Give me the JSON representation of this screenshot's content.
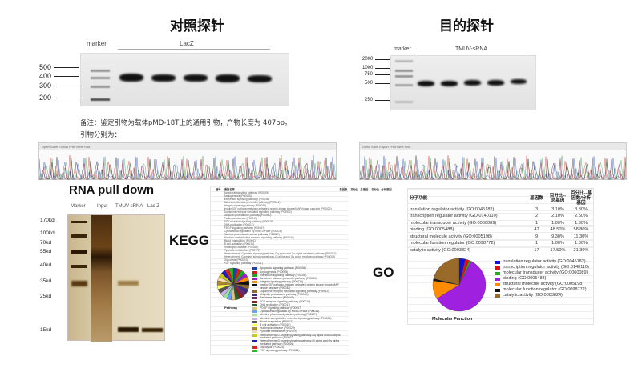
{
  "control_probe": {
    "title": "对照探针",
    "marker_label": "marker",
    "lane_group_label": "LacZ",
    "ladder": [
      "500",
      "400",
      "300",
      "200"
    ],
    "note_line1": "备注：鉴定引物为载体pMD-18T上的通用引物，产物长度为 407bp。",
    "note_line2": "引物分别为："
  },
  "target_probe": {
    "title": "目的探针",
    "marker_label": "marker",
    "lane_group_label": "TMUV-sRNA",
    "ladder": [
      "2000",
      "1000",
      "750",
      "500",
      "250"
    ]
  },
  "chromatogram_toolbar": [
    "Open",
    "Save",
    "Export",
    "Print",
    "Next",
    "Find"
  ],
  "pull_down": {
    "title": "RNA pull down",
    "lanes": [
      "Marker",
      "Input",
      "TMUV-sRNA",
      "Lac Z"
    ],
    "sizes": [
      "170kd",
      "100kd",
      "70kd",
      "55kd",
      "40kd",
      "35kd",
      "25kd",
      "15kd"
    ]
  },
  "kegg": {
    "label": "KEGG",
    "headers": [
      "编号",
      "通路名称",
      "基因数",
      "百分比--总基因",
      "百分比--分析基因"
    ],
    "pie_title": "Pathway",
    "pathways": [
      "Apoptosis signaling pathway (P00006)",
      "Angiogenesis (P00005)",
      "Interleukin signaling pathway (P00036)",
      "Alzheimer disease-presenilin pathway (P00004)",
      "Integrin signaling pathway (P00034)",
      "Insulin/IGF pathway-mitogen activated protein kinase kinase/MAP kinase cascade (P00032)",
      "Dopamine receptor mediated signaling pathway (P05912)",
      "Ubiquitin proteasome pathway (P00060)",
      "Parkinson disease (P00049)",
      "EGF receptor signaling pathway (P00018)",
      "DNA replication (P00017)",
      "PDGF signaling pathway (P00047)",
      "Cytoskeletal regulation by Rho GTPase (P00016)",
      "Nicotine pharmacodynamics pathway (P06587)",
      "Nicotinic acetylcholine receptor signaling pathway (P00044)",
      "Blood coagulation (P00011)",
      "B cell activation (P00010)",
      "Huntington disease (P00029)",
      "Pyruvate metabolism (P02772)",
      "Heterotrimeric G-protein signaling pathway-Gq alpha and Go alpha mediated pathway (P00027)",
      "Heterotrimeric G-protein signaling pathway-Gi alpha and Gs alpha mediated pathway (P00026)",
      "Glycolysis (P00024)",
      "FGF signaling pathway (P00021)"
    ],
    "colors": [
      "#1f3fbf",
      "#d21f1f",
      "#1fa81f",
      "#9b1fd2",
      "#ff8c00",
      "#111111",
      "#8b6a2b",
      "#3a2b8b",
      "#6b2b6b",
      "#8b1f1f",
      "#2b5b2b",
      "#d9c27a",
      "#66a3ff",
      "#99e699",
      "#c7b3e6",
      "#555555",
      "#ffff55",
      "#b3862b",
      "#f0d9b3",
      "#c8c81f",
      "#1f1fbf",
      "#e01f1f",
      "#22bb22"
    ]
  },
  "go": {
    "label": "GO",
    "headers": [
      "分子功能",
      "基因数",
      "百分比--总基因",
      "百分比--基因数/分析基因"
    ],
    "rows": [
      [
        "translation regulator activity (GO:0045182)",
        "3",
        "3.10%",
        "3.80%"
      ],
      [
        "transcription regulator activity (GO:0140110)",
        "2",
        "2.10%",
        "2.50%"
      ],
      [
        "molecular transducer activity (GO:0060089)",
        "1",
        "1.00%",
        "1.30%"
      ],
      [
        "binding (GO:0005488)",
        "47",
        "48.50%",
        "58.80%"
      ],
      [
        "structural molecule activity (GO:0005198)",
        "9",
        "9.30%",
        "11.30%"
      ],
      [
        "molecular function regulator (GO:0098772)",
        "1",
        "1.00%",
        "1.30%"
      ],
      [
        "catalytic activity (GO:0003824)",
        "17",
        "17.50%",
        "21.30%"
      ]
    ],
    "colors": [
      "#1010e0",
      "#e01010",
      "#20b020",
      "#a020e0",
      "#ff8c00",
      "#111111",
      "#9a6a2a"
    ],
    "pie_title": "Molecular Function"
  }
}
